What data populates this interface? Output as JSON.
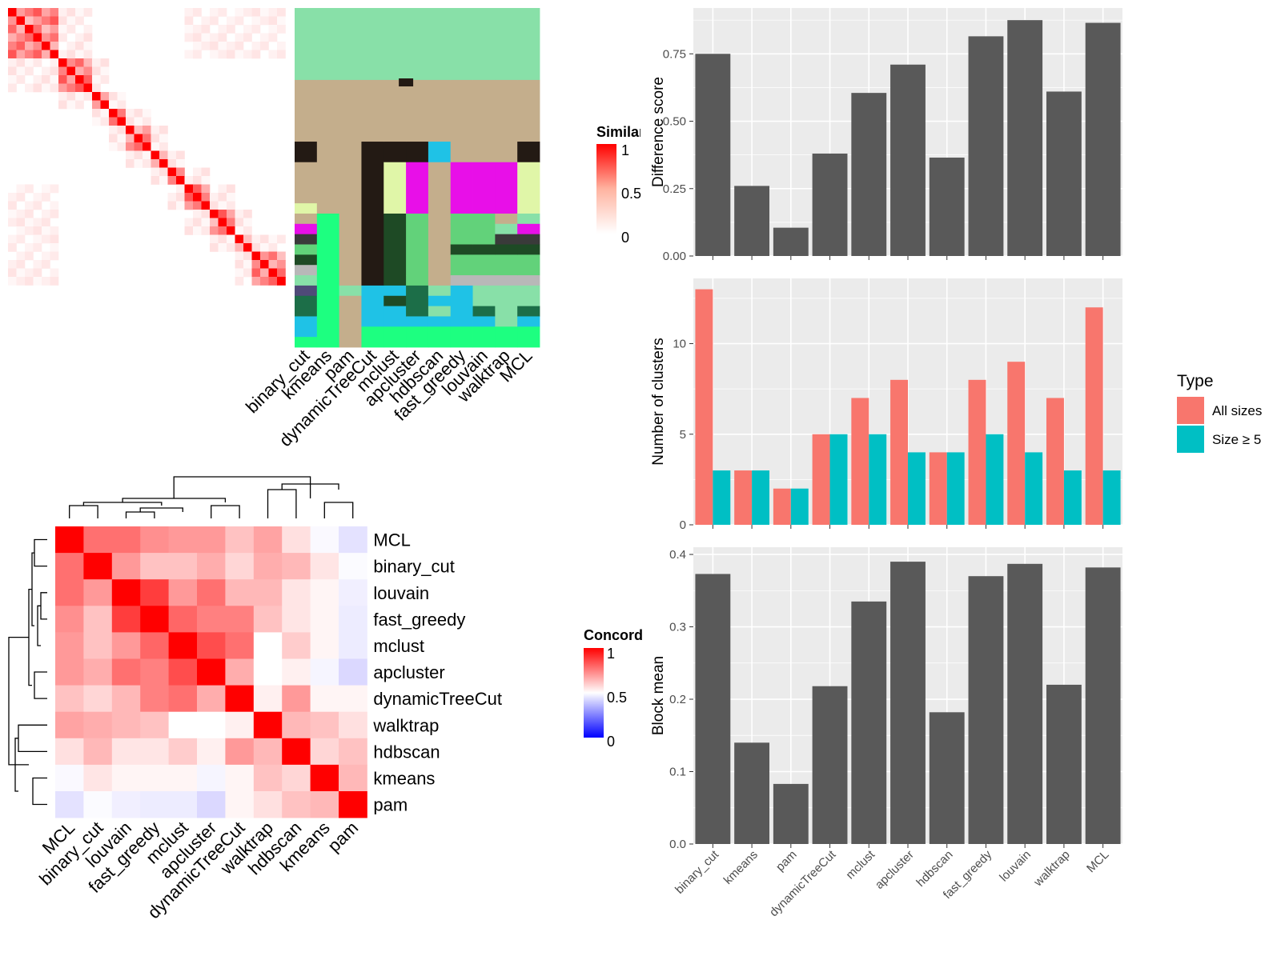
{
  "colors": {
    "bar_dark": "#595959",
    "panel_bg": "#ebebeb",
    "grid": "#ffffff",
    "all_sizes": "#F8766D",
    "size_ge5": "#00BFC4",
    "heat_high": "#ff0000",
    "heat_mid": "#ffffff",
    "heat_low": "#0000ff"
  },
  "similarity_heatmap": {
    "legend_title": "Similarity",
    "legend_ticks": [
      "1",
      "0.5",
      "0"
    ]
  },
  "cluster_assignment": {
    "methods": [
      "binary_cut",
      "kmeans",
      "pam",
      "dynamicTreeCut",
      "mclust",
      "apcluster",
      "hdbscan",
      "fast_greedy",
      "louvain",
      "walktrap",
      "MCL"
    ]
  },
  "concordance_heatmap": {
    "legend_title": "Concordance",
    "legend_ticks": [
      "1",
      "0.5",
      "0"
    ],
    "row_labels": [
      "MCL",
      "binary_cut",
      "louvain",
      "fast_greedy",
      "mclust",
      "apcluster",
      "dynamicTreeCut",
      "walktrap",
      "hdbscan",
      "kmeans",
      "pam"
    ],
    "col_labels": [
      "MCL",
      "binary_cut",
      "louvain",
      "fast_greedy",
      "mclust",
      "apcluster",
      "dynamicTreeCut",
      "walktrap",
      "hdbscan",
      "kmeans",
      "pam"
    ]
  },
  "chart_data": [
    {
      "type": "bar",
      "ylabel": "Difference score",
      "categories": [
        "binary_cut",
        "kmeans",
        "pam",
        "dynamicTreeCut",
        "mclust",
        "apcluster",
        "hdbscan",
        "fast_greedy",
        "louvain",
        "walktrap",
        "MCL"
      ],
      "values": [
        0.75,
        0.26,
        0.105,
        0.38,
        0.605,
        0.71,
        0.365,
        0.815,
        0.875,
        0.61,
        0.865
      ],
      "ylim": [
        0,
        0.92
      ],
      "yticks": [
        0.0,
        0.25,
        0.5,
        0.75
      ],
      "ytick_labels": [
        "0.00",
        "0.25",
        "0.50",
        "0.75"
      ]
    },
    {
      "type": "bar",
      "ylabel": "Number of clusters",
      "categories": [
        "binary_cut",
        "kmeans",
        "pam",
        "dynamicTreeCut",
        "mclust",
        "apcluster",
        "hdbscan",
        "fast_greedy",
        "louvain",
        "walktrap",
        "MCL"
      ],
      "series": [
        {
          "name": "All sizes",
          "values": [
            13,
            3,
            2,
            5,
            7,
            8,
            4,
            8,
            9,
            7,
            12
          ]
        },
        {
          "name": "Size ≥ 5",
          "values": [
            3,
            3,
            2,
            5,
            5,
            4,
            4,
            5,
            4,
            3,
            3
          ]
        }
      ],
      "legend_title": "Type",
      "legend_position": "right",
      "ylim": [
        0,
        13.6
      ],
      "yticks": [
        0,
        5,
        10
      ],
      "ytick_labels": [
        "0",
        "5",
        "10"
      ]
    },
    {
      "type": "bar",
      "ylabel": "Block mean",
      "categories": [
        "binary_cut",
        "kmeans",
        "pam",
        "dynamicTreeCut",
        "mclust",
        "apcluster",
        "hdbscan",
        "fast_greedy",
        "louvain",
        "walktrap",
        "MCL"
      ],
      "values": [
        0.373,
        0.14,
        0.083,
        0.218,
        0.335,
        0.39,
        0.182,
        0.37,
        0.387,
        0.22,
        0.382
      ],
      "ylim": [
        0,
        0.41
      ],
      "yticks": [
        0.0,
        0.1,
        0.2,
        0.3,
        0.4
      ],
      "ytick_labels": [
        "0.0",
        "0.1",
        "0.2",
        "0.3",
        "0.4"
      ]
    },
    {
      "type": "heatmap",
      "legend_title": "Concordance",
      "rows": [
        "MCL",
        "binary_cut",
        "louvain",
        "fast_greedy",
        "mclust",
        "apcluster",
        "dynamicTreeCut",
        "walktrap",
        "hdbscan",
        "kmeans",
        "pam"
      ],
      "cols": [
        "MCL",
        "binary_cut",
        "louvain",
        "fast_greedy",
        "mclust",
        "apcluster",
        "dynamicTreeCut",
        "walktrap",
        "hdbscan",
        "kmeans",
        "pam"
      ],
      "values": [
        [
          1.0,
          0.78,
          0.78,
          0.72,
          0.7,
          0.7,
          0.62,
          0.68,
          0.56,
          0.47,
          0.35
        ],
        [
          0.78,
          1.0,
          0.7,
          0.62,
          0.62,
          0.66,
          0.58,
          0.66,
          0.64,
          0.55,
          0.48
        ],
        [
          0.78,
          0.7,
          1.0,
          0.88,
          0.7,
          0.78,
          0.64,
          0.64,
          0.55,
          0.52,
          0.42
        ],
        [
          0.72,
          0.62,
          0.88,
          1.0,
          0.8,
          0.75,
          0.75,
          0.62,
          0.55,
          0.52,
          0.4
        ],
        [
          0.7,
          0.62,
          0.7,
          0.8,
          1.0,
          0.85,
          0.78,
          0.5,
          0.6,
          0.52,
          0.4
        ],
        [
          0.7,
          0.66,
          0.78,
          0.75,
          0.85,
          1.0,
          0.66,
          0.5,
          0.53,
          0.45,
          0.3
        ],
        [
          0.62,
          0.58,
          0.64,
          0.75,
          0.78,
          0.66,
          1.0,
          0.53,
          0.7,
          0.52,
          0.52
        ],
        [
          0.68,
          0.66,
          0.64,
          0.62,
          0.5,
          0.5,
          0.53,
          1.0,
          0.64,
          0.62,
          0.56
        ],
        [
          0.56,
          0.64,
          0.55,
          0.55,
          0.6,
          0.53,
          0.7,
          0.64,
          1.0,
          0.58,
          0.62
        ],
        [
          0.47,
          0.55,
          0.52,
          0.52,
          0.52,
          0.45,
          0.52,
          0.62,
          0.58,
          1.0,
          0.64
        ],
        [
          0.35,
          0.48,
          0.42,
          0.4,
          0.4,
          0.3,
          0.52,
          0.56,
          0.62,
          0.64,
          1.0
        ]
      ]
    }
  ]
}
